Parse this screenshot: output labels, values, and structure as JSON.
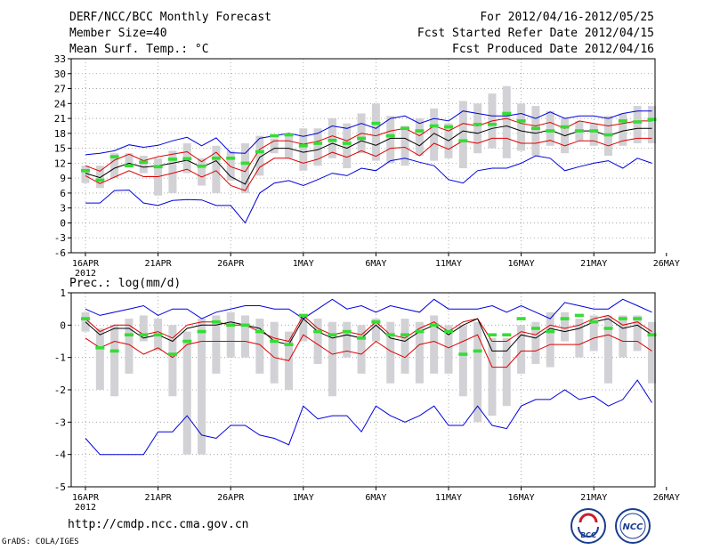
{
  "header": {
    "title": "DERF/NCC/BCC Monthly Forecast",
    "member": "Member Size=40",
    "variable": "Mean Surf. Temp.: °C",
    "period": "For 2012/04/16-2012/05/25",
    "refer": "Fcst Started Refer Date 2012/04/15",
    "produced": "Fcst Produced Date 2012/04/16"
  },
  "footer": {
    "url": "http://cmdp.ncc.cma.gov.cn",
    "grads": "GrADS: COLA/IGES",
    "bcc_logo": "BCC",
    "ncc_logo": "NCC"
  },
  "colors": {
    "envelope": "#0000dd",
    "spread": "#dd0000",
    "mean": "#000000",
    "box": "#d2d2d6",
    "observed": "#33dd33"
  },
  "chart_data": [
    {
      "type": "line",
      "title": "Mean Surf. Temp.: °C",
      "x_tick_labels": [
        "16APR",
        "21APR",
        "26APR",
        "1MAY",
        "6MAY",
        "11MAY",
        "16MAY",
        "21MAY",
        "26MAY"
      ],
      "x_year_label": "2012",
      "ylim": [
        -6,
        33
      ],
      "y_ticks": [
        -6,
        -3,
        0,
        3,
        6,
        9,
        12,
        15,
        18,
        21,
        24,
        27,
        30,
        33
      ],
      "days": 40,
      "series": [
        {
          "name": "max",
          "values": [
            13.7,
            14.0,
            14.5,
            15.7,
            15.2,
            15.6,
            16.5,
            17.2,
            15.5,
            17.1,
            14.1,
            14.0,
            17.0,
            17.5,
            18.0,
            17.4,
            18.0,
            19.5,
            19.0,
            20.0,
            19.0,
            21.0,
            21.5,
            20.0,
            21.0,
            20.5,
            22.5,
            22.0,
            21.5,
            21.5,
            22.0,
            21.0,
            22.3,
            21.0,
            21.5,
            21.5,
            21.0,
            22.0,
            22.5,
            22.5
          ]
        },
        {
          "name": "upper",
          "values": [
            11.5,
            10.4,
            12.6,
            13.8,
            12.5,
            13.3,
            13.8,
            14.3,
            12.3,
            14.2,
            11.3,
            10.3,
            14.8,
            16.5,
            16.5,
            15.8,
            16.4,
            17.5,
            16.5,
            18.0,
            17.5,
            18.5,
            19.0,
            17.5,
            19.5,
            18.5,
            20.0,
            19.5,
            20.5,
            21.0,
            20.0,
            19.5,
            20.2,
            19.0,
            20.5,
            20.0,
            19.5,
            20.0,
            20.5,
            20.5
          ]
        },
        {
          "name": "mean",
          "values": [
            10.0,
            9.1,
            11.0,
            12.0,
            11.2,
            11.5,
            12.0,
            12.6,
            11.2,
            12.5,
            9.3,
            7.8,
            13.2,
            15.0,
            15.0,
            14.2,
            14.7,
            16.0,
            15.0,
            16.5,
            15.6,
            17.0,
            17.0,
            15.5,
            18.0,
            16.5,
            18.5,
            18.0,
            19.0,
            19.5,
            18.5,
            18.0,
            18.7,
            17.5,
            18.5,
            18.5,
            17.5,
            18.5,
            19.0,
            19.0
          ]
        },
        {
          "name": "lower",
          "values": [
            9.5,
            7.9,
            9.2,
            10.5,
            9.3,
            9.3,
            10.0,
            10.8,
            9.2,
            10.5,
            7.5,
            6.5,
            11.2,
            13.0,
            13.0,
            12.0,
            12.8,
            14.2,
            13.2,
            14.5,
            13.4,
            15.0,
            15.2,
            13.5,
            16.0,
            14.8,
            16.5,
            16.0,
            17.0,
            17.0,
            16.0,
            16.0,
            16.6,
            15.5,
            16.5,
            16.5,
            15.5,
            16.5,
            17.0,
            17.0
          ]
        },
        {
          "name": "min",
          "values": [
            4.0,
            4.0,
            6.5,
            6.6,
            4.0,
            3.5,
            4.5,
            4.7,
            4.6,
            3.5,
            3.5,
            0.0,
            6.0,
            8.0,
            8.5,
            7.5,
            8.7,
            10.0,
            9.5,
            11.0,
            10.5,
            12.5,
            13.0,
            12.2,
            11.5,
            8.7,
            8.0,
            10.5,
            11.0,
            11.0,
            12.0,
            13.5,
            13.0,
            10.5,
            11.3,
            12.0,
            12.5,
            11.0,
            13.0,
            12.0
          ]
        },
        {
          "name": "box_low",
          "values": [
            8.0,
            7.0,
            9.0,
            11.5,
            10.0,
            5.5,
            6.0,
            10.0,
            7.5,
            6.0,
            8.5,
            6.0,
            9.5,
            14.0,
            13.0,
            10.5,
            11.5,
            13.0,
            11.0,
            14.0,
            12.5,
            12.0,
            11.5,
            13.5,
            12.5,
            13.0,
            11.0,
            14.0,
            15.0,
            13.0,
            14.5,
            13.5,
            15.5,
            14.0,
            16.5,
            15.5,
            13.5,
            15.5,
            16.0,
            16.0
          ]
        },
        {
          "name": "box_high",
          "values": [
            11.5,
            11.5,
            14.0,
            14.0,
            13.5,
            13.0,
            14.5,
            16.0,
            13.0,
            15.5,
            14.5,
            16.0,
            17.5,
            17.0,
            18.0,
            19.0,
            19.0,
            21.0,
            20.0,
            22.0,
            24.0,
            21.5,
            19.5,
            21.0,
            23.0,
            20.0,
            24.5,
            24.0,
            26.0,
            27.5,
            24.0,
            23.5,
            22.5,
            21.0,
            20.5,
            20.0,
            21.5,
            22.0,
            23.5,
            23.5
          ]
        },
        {
          "name": "observed",
          "values": [
            10.5,
            8.6,
            13.3,
            11.5,
            12.2,
            11.3,
            12.8,
            12.9,
            11.4,
            13.0,
            13.0,
            12.0,
            14.3,
            17.5,
            17.7,
            15.5,
            16.0,
            16.6,
            16.0,
            17.0,
            20.0,
            17.5,
            19.0,
            18.5,
            19.5,
            19.3,
            16.5,
            19.8,
            19.8,
            22.0,
            20.5,
            19.0,
            18.5,
            19.3,
            18.5,
            18.5,
            17.7,
            20.5,
            20.3,
            20.8
          ]
        }
      ]
    },
    {
      "type": "line",
      "title": "Prec.: log(mm/d)",
      "x_tick_labels": [
        "16APR",
        "21APR",
        "26APR",
        "1MAY",
        "6MAY",
        "11MAY",
        "16MAY",
        "21MAY",
        "26MAY"
      ],
      "x_year_label": "2012",
      "ylim": [
        -5,
        1
      ],
      "y_ticks": [
        -5,
        -4,
        -3,
        -2,
        -1,
        0,
        1
      ],
      "days": 40,
      "series": [
        {
          "name": "max",
          "values": [
            0.5,
            0.3,
            0.4,
            0.5,
            0.6,
            0.3,
            0.5,
            0.5,
            0.2,
            0.4,
            0.5,
            0.6,
            0.6,
            0.5,
            0.5,
            0.2,
            0.5,
            0.8,
            0.5,
            0.6,
            0.4,
            0.6,
            0.5,
            0.4,
            0.8,
            0.5,
            0.5,
            0.5,
            0.6,
            0.4,
            0.6,
            0.4,
            0.2,
            0.7,
            0.6,
            0.5,
            0.5,
            0.8,
            0.6,
            0.4
          ]
        },
        {
          "name": "upper",
          "values": [
            0.2,
            -0.2,
            0.0,
            0.0,
            -0.3,
            -0.2,
            -0.4,
            0.0,
            0.1,
            0.1,
            0.0,
            0.0,
            -0.2,
            -0.4,
            -0.5,
            0.3,
            -0.1,
            -0.3,
            -0.2,
            -0.3,
            0.1,
            -0.3,
            -0.4,
            -0.1,
            0.1,
            -0.2,
            0.1,
            0.2,
            -0.5,
            -0.5,
            -0.2,
            -0.3,
            0.0,
            -0.1,
            0.0,
            0.2,
            0.3,
            0.0,
            0.1,
            -0.2
          ]
        },
        {
          "name": "mean",
          "values": [
            0.1,
            -0.3,
            -0.1,
            -0.1,
            -0.4,
            -0.3,
            -0.5,
            -0.1,
            0.0,
            0.0,
            0.1,
            0.0,
            -0.1,
            -0.5,
            -0.6,
            0.2,
            -0.2,
            -0.4,
            -0.3,
            -0.4,
            0.0,
            -0.4,
            -0.5,
            -0.2,
            0.0,
            -0.3,
            0.0,
            0.2,
            -0.8,
            -0.8,
            -0.3,
            -0.4,
            -0.1,
            -0.2,
            -0.1,
            0.1,
            0.2,
            -0.1,
            0.0,
            -0.3
          ]
        },
        {
          "name": "lower",
          "values": [
            -0.4,
            -0.7,
            -0.5,
            -0.6,
            -0.9,
            -0.7,
            -1.0,
            -0.6,
            -0.5,
            -0.5,
            -0.5,
            -0.5,
            -0.6,
            -1.0,
            -1.1,
            -0.3,
            -0.6,
            -0.9,
            -0.8,
            -0.9,
            -0.5,
            -0.8,
            -1.0,
            -0.6,
            -0.5,
            -0.7,
            -0.5,
            -0.3,
            -1.3,
            -1.3,
            -0.8,
            -0.8,
            -0.6,
            -0.6,
            -0.6,
            -0.4,
            -0.3,
            -0.5,
            -0.5,
            -0.8
          ]
        },
        {
          "name": "min",
          "values": [
            -3.5,
            -4.0,
            -4.0,
            -4.0,
            -4.0,
            -3.3,
            -3.3,
            -2.8,
            -3.4,
            -3.5,
            -3.1,
            -3.1,
            -3.4,
            -3.5,
            -3.7,
            -2.5,
            -2.9,
            -2.8,
            -2.8,
            -3.3,
            -2.5,
            -2.8,
            -3.0,
            -2.8,
            -2.5,
            -3.1,
            -3.1,
            -2.5,
            -3.1,
            -3.2,
            -2.5,
            -2.3,
            -2.3,
            -2.0,
            -2.3,
            -2.2,
            -2.5,
            -2.3,
            -1.7,
            -2.4
          ]
        },
        {
          "name": "box_low",
          "values": [
            -0.2,
            -2.0,
            -2.2,
            -1.5,
            -0.5,
            -0.8,
            -2.2,
            -4.0,
            -4.0,
            -1.5,
            -1.0,
            -1.0,
            -1.5,
            -1.8,
            -2.0,
            -0.5,
            -1.2,
            -2.2,
            -1.0,
            -1.5,
            -0.5,
            -1.8,
            -1.5,
            -1.8,
            -1.5,
            -1.5,
            -2.2,
            -3.0,
            -2.8,
            -2.5,
            -1.5,
            -1.2,
            -1.3,
            -0.5,
            -1.0,
            -0.8,
            -1.8,
            -1.0,
            -0.8,
            -1.8
          ]
        },
        {
          "name": "box_high",
          "values": [
            0.4,
            -0.1,
            0.0,
            0.2,
            0.3,
            0.2,
            0.0,
            -0.2,
            0.2,
            0.3,
            0.4,
            0.3,
            0.2,
            0.1,
            -0.2,
            0.3,
            0.2,
            0.1,
            0.1,
            0.0,
            0.2,
            0.1,
            0.2,
            0.1,
            0.3,
            0.0,
            0.0,
            0.1,
            -0.4,
            -0.4,
            0.0,
            0.1,
            0.4,
            0.4,
            0.2,
            0.3,
            0.3,
            0.3,
            0.3,
            0.1
          ]
        },
        {
          "name": "observed",
          "values": [
            0.2,
            -0.7,
            -0.8,
            -0.3,
            -0.3,
            -0.3,
            -0.9,
            -0.5,
            -0.2,
            0.1,
            0.0,
            0.0,
            -0.2,
            -0.5,
            -0.6,
            0.3,
            -0.2,
            -0.3,
            -0.2,
            -0.4,
            0.1,
            -0.3,
            -0.3,
            -0.2,
            0.0,
            -0.2,
            -0.9,
            -0.8,
            -0.3,
            -0.3,
            0.2,
            -0.1,
            -0.2,
            0.2,
            0.3,
            0.1,
            -0.1,
            0.2,
            0.2,
            -0.3
          ]
        }
      ]
    }
  ]
}
